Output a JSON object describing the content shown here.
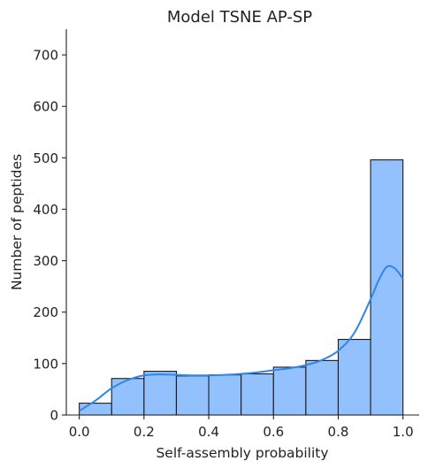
{
  "chart_data": {
    "type": "bar",
    "title": "Model TSNE AP-SP",
    "xlabel": "Self-assembly probability",
    "ylabel": "Number of peptides",
    "xlim": [
      -0.04,
      1.05
    ],
    "ylim": [
      0,
      750
    ],
    "x_ticks": [
      0.0,
      0.2,
      0.4,
      0.6,
      0.8,
      1.0
    ],
    "x_tick_labels": [
      "0.0",
      "0.2",
      "0.4",
      "0.6",
      "0.8",
      "1.0"
    ],
    "y_ticks": [
      0,
      100,
      200,
      300,
      400,
      500,
      600,
      700
    ],
    "y_tick_labels": [
      "0",
      "100",
      "200",
      "300",
      "400",
      "500",
      "600",
      "700"
    ],
    "bins": [
      {
        "x0": 0.0,
        "x1": 0.1,
        "count": 23
      },
      {
        "x0": 0.1,
        "x1": 0.2,
        "count": 71
      },
      {
        "x0": 0.2,
        "x1": 0.3,
        "count": 85
      },
      {
        "x0": 0.3,
        "x1": 0.4,
        "count": 76
      },
      {
        "x0": 0.4,
        "x1": 0.5,
        "count": 78
      },
      {
        "x0": 0.5,
        "x1": 0.6,
        "count": 80
      },
      {
        "x0": 0.6,
        "x1": 0.7,
        "count": 93
      },
      {
        "x0": 0.7,
        "x1": 0.8,
        "count": 106
      },
      {
        "x0": 0.8,
        "x1": 0.9,
        "count": 147
      },
      {
        "x0": 0.9,
        "x1": 1.0,
        "count": 496
      }
    ],
    "kde": {
      "x": [
        0.0,
        0.05,
        0.1,
        0.15,
        0.2,
        0.25,
        0.3,
        0.35,
        0.4,
        0.45,
        0.5,
        0.55,
        0.6,
        0.65,
        0.7,
        0.75,
        0.8,
        0.85,
        0.9,
        0.925,
        0.95,
        0.975,
        1.0
      ],
      "y": [
        8,
        28,
        52,
        68,
        77,
        79,
        78,
        77,
        77,
        78,
        80,
        83,
        87,
        91,
        97,
        107,
        125,
        160,
        225,
        262,
        288,
        285,
        265
      ]
    },
    "grid": false,
    "colors": {
      "bar_fill": "#93c1fd",
      "bar_edge": "#1a1a1a",
      "kde_line": "#2f86e8"
    }
  }
}
